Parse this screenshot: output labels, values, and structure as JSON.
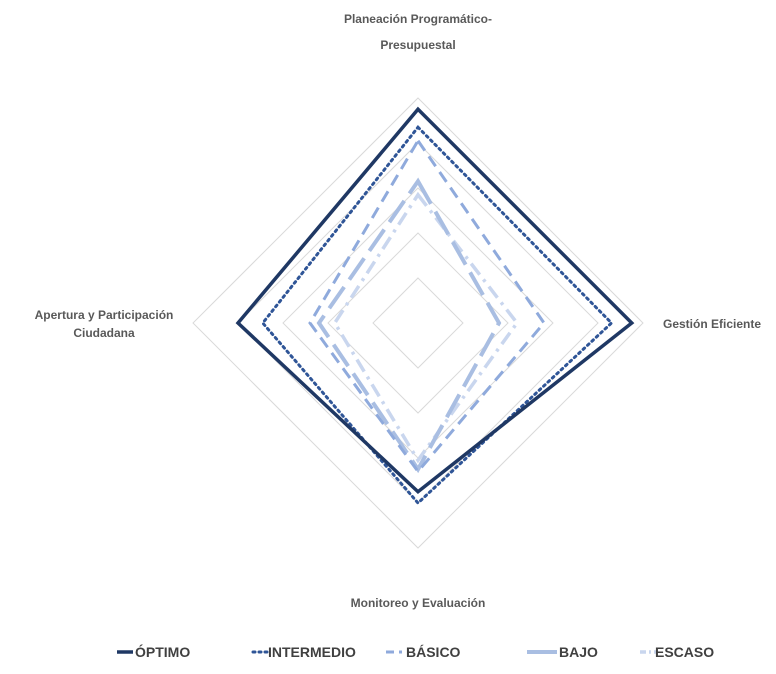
{
  "chart_data": {
    "type": "radar",
    "axes": [
      "Planeación Programático-Presupuestal",
      "Gestión Eficiente",
      "Monitoreo y Evaluación",
      "Apertura y Participación Ciudadana"
    ],
    "axis_label_lines": [
      [
        "Planeación Programático-",
        "Presupuestal"
      ],
      [
        "Gestión Eficiente"
      ],
      [
        "Monitoreo y Evaluación"
      ],
      [
        "Apertura y Participación",
        "Ciudadana"
      ]
    ],
    "range": [
      0,
      100
    ],
    "gridline_levels": [
      20,
      40,
      60,
      80,
      100
    ],
    "grid": true,
    "legend_position": "bottom",
    "series": [
      {
        "name": "ÓPTIMO",
        "values": [
          95,
          95,
          75,
          80
        ],
        "color": "#1F3864",
        "line_style": "solid"
      },
      {
        "name": "INTERMEDIO",
        "values": [
          87,
          86,
          80,
          69
        ],
        "color": "#2F5597",
        "line_style": "dotted"
      },
      {
        "name": "BÁSICO",
        "values": [
          81,
          56,
          66,
          48
        ],
        "color": "#8FAADC",
        "line_style": "dashed"
      },
      {
        "name": "BAJO",
        "values": [
          63,
          36,
          65,
          44
        ],
        "color": "#A9BEE2",
        "line_style": "long-dash"
      },
      {
        "name": "ESCASO",
        "values": [
          57,
          44,
          61,
          37
        ],
        "color": "#C9D6EE",
        "line_style": "dash-dot"
      }
    ]
  }
}
